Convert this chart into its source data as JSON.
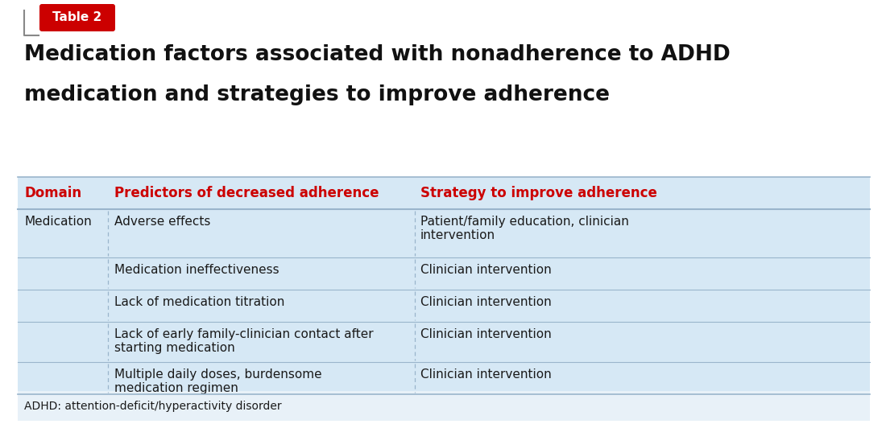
{
  "table_label": "Table 2",
  "title_line1": "Medication factors associated with nonadherence to ADHD",
  "title_line2": "medication and strategies to improve adherence",
  "col_headers": [
    "Domain",
    "Predictors of decreased adherence",
    "Strategy to improve adherence"
  ],
  "rows": [
    {
      "domain": "Medication",
      "predictor": "Adverse effects",
      "strategy": "Patient/family education, clinician\nintervention"
    },
    {
      "domain": "",
      "predictor": "Medication ineffectiveness",
      "strategy": "Clinician intervention"
    },
    {
      "domain": "",
      "predictor": "Lack of medication titration",
      "strategy": "Clinician intervention"
    },
    {
      "domain": "",
      "predictor": "Lack of early family-clinician contact after\nstarting medication",
      "strategy": "Clinician intervention"
    },
    {
      "domain": "",
      "predictor": "Multiple daily doses, burdensome\nmedication regimen",
      "strategy": "Clinician intervention"
    }
  ],
  "footnote": "ADHD: attention-deficit/hyperactivity disorder",
  "header_color": "#CC0000",
  "table_bg_color": "#d6e8f5",
  "row_divider_color": "#9ab5cc",
  "outer_border_color": "#9ab5cc",
  "title_color": "#111111",
  "label_bg_color": "#CC0000",
  "label_text_color": "#ffffff",
  "body_text_color": "#1a1a1a",
  "footnote_bg": "#e8f1f8"
}
